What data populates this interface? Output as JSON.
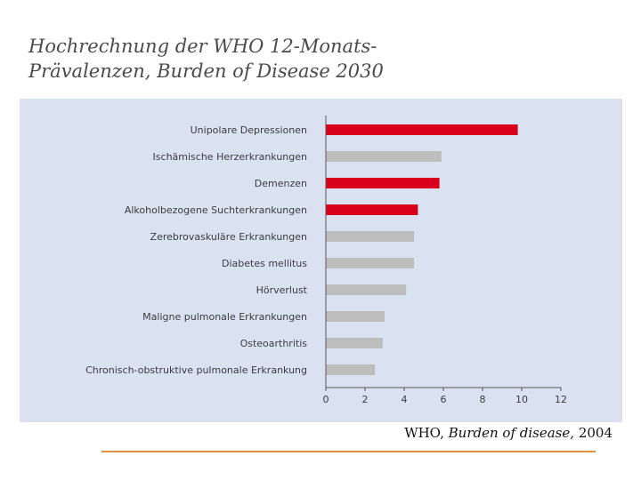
{
  "title_line1": "Hochrechnung der WHO 12-Monats-",
  "title_line2": "Prävalenzen, Burden of Disease 2030",
  "source": {
    "org": "WHO,",
    "title": "Burden of disease,",
    "year": "2004"
  },
  "colors": {
    "panel": "#dae2f2",
    "highlight": "#d9001b",
    "normal": "#bdbdbd",
    "axis": "#555555",
    "rule": "#e2913a"
  },
  "chart_data": {
    "type": "bar",
    "orientation": "horizontal",
    "categories": [
      "Unipolare Depressionen",
      "Ischämische Herzerkrankungen",
      "Demenzen",
      "Alkoholbezogene Suchterkrankungen",
      "Zerebrovaskuläre Erkrankungen",
      "Diabetes mellitus",
      "Hörverlust",
      "Maligne pulmonale Erkrankungen",
      "Osteoarthritis",
      "Chronisch-obstruktive pulmonale Erkrankung"
    ],
    "values": [
      9.8,
      5.9,
      5.8,
      4.7,
      4.5,
      4.5,
      4.1,
      3.0,
      2.9,
      2.5
    ],
    "highlighted": [
      true,
      false,
      true,
      true,
      false,
      false,
      false,
      false,
      false,
      false
    ],
    "xlim": [
      0,
      12
    ],
    "xticks": [
      0,
      2,
      4,
      6,
      8,
      10,
      12
    ],
    "grid": false
  }
}
